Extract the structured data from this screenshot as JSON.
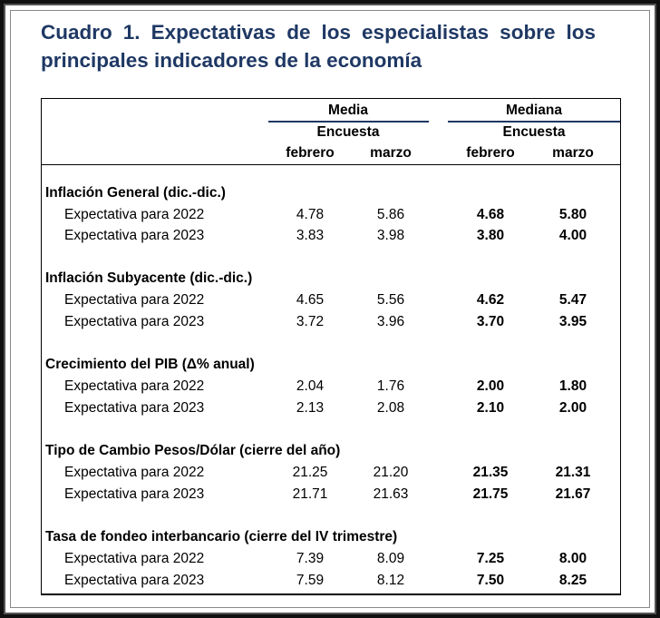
{
  "title": "Cuadro 1. Expectativas de los especialistas sobre los principales indicadores de la economía",
  "header": {
    "media": "Media",
    "mediana": "Mediana",
    "encuesta": "Encuesta",
    "febrero": "febrero",
    "marzo": "marzo"
  },
  "sections": [
    {
      "label": "Inflación General (dic.-dic.)",
      "rows": [
        {
          "label": "Expectativa para 2022",
          "media_feb": "4.78",
          "media_mar": "5.86",
          "mediana_feb": "4.68",
          "mediana_mar": "5.80"
        },
        {
          "label": "Expectativa para 2023",
          "media_feb": "3.83",
          "media_mar": "3.98",
          "mediana_feb": "3.80",
          "mediana_mar": "4.00"
        }
      ]
    },
    {
      "label": "Inflación Subyacente (dic.-dic.)",
      "rows": [
        {
          "label": "Expectativa para 2022",
          "media_feb": "4.65",
          "media_mar": "5.56",
          "mediana_feb": "4.62",
          "mediana_mar": "5.47"
        },
        {
          "label": "Expectativa para 2023",
          "media_feb": "3.72",
          "media_mar": "3.96",
          "mediana_feb": "3.70",
          "mediana_mar": "3.95"
        }
      ]
    },
    {
      "label": "Crecimiento del PIB (Δ% anual)",
      "rows": [
        {
          "label": "Expectativa para 2022",
          "media_feb": "2.04",
          "media_mar": "1.76",
          "mediana_feb": "2.00",
          "mediana_mar": "1.80"
        },
        {
          "label": "Expectativa para 2023",
          "media_feb": "2.13",
          "media_mar": "2.08",
          "mediana_feb": "2.10",
          "mediana_mar": "2.00"
        }
      ]
    },
    {
      "label": "Tipo de Cambio Pesos/Dólar (cierre del año)",
      "rows": [
        {
          "label": "Expectativa para 2022",
          "media_feb": "21.25",
          "media_mar": "21.20",
          "mediana_feb": "21.35",
          "mediana_mar": "21.31"
        },
        {
          "label": "Expectativa para 2023",
          "media_feb": "21.71",
          "media_mar": "21.63",
          "mediana_feb": "21.75",
          "mediana_mar": "21.67"
        }
      ]
    },
    {
      "label": "Tasa de fondeo interbancario (cierre del IV trimestre)",
      "rows": [
        {
          "label": "Expectativa para 2022",
          "media_feb": "7.39",
          "media_mar": "8.09",
          "mediana_feb": "7.25",
          "mediana_mar": "8.00"
        },
        {
          "label": "Expectativa para 2023",
          "media_feb": "7.59",
          "media_mar": "8.12",
          "mediana_feb": "7.50",
          "mediana_mar": "8.25"
        }
      ]
    }
  ]
}
